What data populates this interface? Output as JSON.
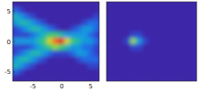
{
  "chart_data": [
    {
      "type": "heatmap",
      "xlim": [
        -8.5,
        6.5
      ],
      "ylim": [
        -6.5,
        6.5
      ],
      "xticks": [
        -5,
        0,
        5
      ],
      "yticks": [
        -5,
        0,
        5
      ],
      "zlim": [
        0,
        10
      ],
      "x": [
        -8,
        -7,
        -6,
        -5,
        -4,
        -3,
        -2,
        -1,
        0,
        1,
        2,
        3,
        4,
        5,
        6
      ],
      "y": [
        6,
        5,
        4,
        3,
        2,
        1,
        0,
        -1,
        -2,
        -3,
        -4,
        -5,
        -6
      ],
      "cells": [
        [
          0,
          0,
          0,
          0,
          0,
          0,
          0,
          0,
          0,
          0,
          0,
          0,
          0,
          0,
          0
        ],
        [
          2,
          1,
          0,
          0,
          0,
          0,
          0,
          0,
          0,
          0,
          0,
          0,
          0,
          0,
          0
        ],
        [
          4,
          3,
          2,
          1,
          0,
          0,
          0,
          0,
          0,
          0,
          0,
          0,
          0,
          0,
          1
        ],
        [
          3,
          4,
          4,
          3,
          2,
          1,
          0,
          0,
          0,
          0,
          0,
          0,
          1,
          2,
          2
        ],
        [
          1,
          2,
          3,
          4,
          4,
          3,
          2,
          1,
          0,
          0,
          1,
          2,
          3,
          3,
          2
        ],
        [
          1,
          1,
          1,
          2,
          3,
          4,
          5,
          5,
          4,
          3,
          3,
          3,
          3,
          2,
          1
        ],
        [
          3,
          3,
          3,
          3,
          4,
          5,
          7,
          9,
          10,
          7,
          5,
          4,
          3,
          3,
          2
        ],
        [
          1,
          1,
          1,
          2,
          3,
          4,
          5,
          6,
          5,
          4,
          3,
          3,
          2,
          2,
          1
        ],
        [
          1,
          2,
          3,
          4,
          4,
          3,
          2,
          1,
          1,
          1,
          2,
          3,
          3,
          2,
          1
        ],
        [
          3,
          4,
          4,
          3,
          2,
          1,
          0,
          0,
          0,
          0,
          0,
          1,
          2,
          2,
          2
        ],
        [
          4,
          3,
          2,
          1,
          0,
          0,
          0,
          0,
          0,
          0,
          0,
          0,
          0,
          1,
          1
        ],
        [
          2,
          1,
          0,
          0,
          0,
          0,
          0,
          0,
          0,
          0,
          0,
          0,
          0,
          0,
          0
        ],
        [
          0,
          0,
          0,
          0,
          0,
          0,
          0,
          0,
          0,
          0,
          0,
          0,
          0,
          0,
          0
        ]
      ]
    },
    {
      "type": "heatmap",
      "xlim": [
        -8.5,
        6.5
      ],
      "ylim": [
        -6.5,
        6.5
      ],
      "xticks": [
        -5,
        0,
        5
      ],
      "yticks": [
        -5,
        0,
        5
      ],
      "tick_labels": false,
      "zlim": [
        0,
        10
      ],
      "x": [
        -8,
        -7,
        -6,
        -5,
        -4,
        -3,
        -2,
        -1,
        0,
        1,
        2,
        3,
        4,
        5,
        6
      ],
      "y": [
        6,
        5,
        4,
        3,
        2,
        1,
        0,
        -1,
        -2,
        -3,
        -4,
        -5,
        -6
      ],
      "cells": [
        [
          0,
          0,
          0,
          0,
          0,
          0,
          0,
          0,
          0,
          0,
          0,
          0,
          0,
          0,
          0
        ],
        [
          0,
          0,
          0,
          0,
          0,
          0,
          0,
          0,
          0,
          0,
          0,
          0,
          0,
          0,
          0
        ],
        [
          0,
          0,
          0,
          0,
          0,
          0,
          0,
          0,
          0,
          0,
          0,
          0,
          0,
          0,
          0
        ],
        [
          0,
          0,
          0,
          0,
          0,
          0,
          0,
          0,
          0,
          0,
          0,
          0,
          0,
          0,
          0
        ],
        [
          0,
          0,
          0,
          0,
          0,
          0,
          0,
          0,
          0,
          0,
          0,
          0,
          0,
          0,
          0
        ],
        [
          0,
          0,
          0,
          0,
          1,
          1,
          0,
          0,
          0,
          0,
          0,
          0,
          0,
          0,
          0
        ],
        [
          0,
          0,
          0,
          1,
          6,
          3,
          1,
          0,
          0,
          0,
          0,
          0,
          0,
          0,
          0
        ],
        [
          0,
          0,
          0,
          0,
          1,
          1,
          0,
          0,
          0,
          0,
          0,
          0,
          0,
          0,
          0
        ],
        [
          0,
          0,
          0,
          0,
          0,
          0,
          0,
          0,
          0,
          0,
          0,
          0,
          0,
          0,
          0
        ],
        [
          0,
          0,
          0,
          0,
          0,
          0,
          0,
          0,
          0,
          0,
          0,
          0,
          0,
          0,
          0
        ],
        [
          0,
          0,
          0,
          0,
          0,
          0,
          0,
          0,
          0,
          0,
          0,
          0,
          0,
          0,
          0
        ],
        [
          0,
          0,
          0,
          0,
          0,
          0,
          0,
          0,
          0,
          0,
          0,
          0,
          0,
          0,
          0
        ],
        [
          0,
          0,
          0,
          0,
          0,
          0,
          0,
          0,
          0,
          0,
          0,
          0,
          0,
          0,
          0
        ]
      ]
    }
  ]
}
